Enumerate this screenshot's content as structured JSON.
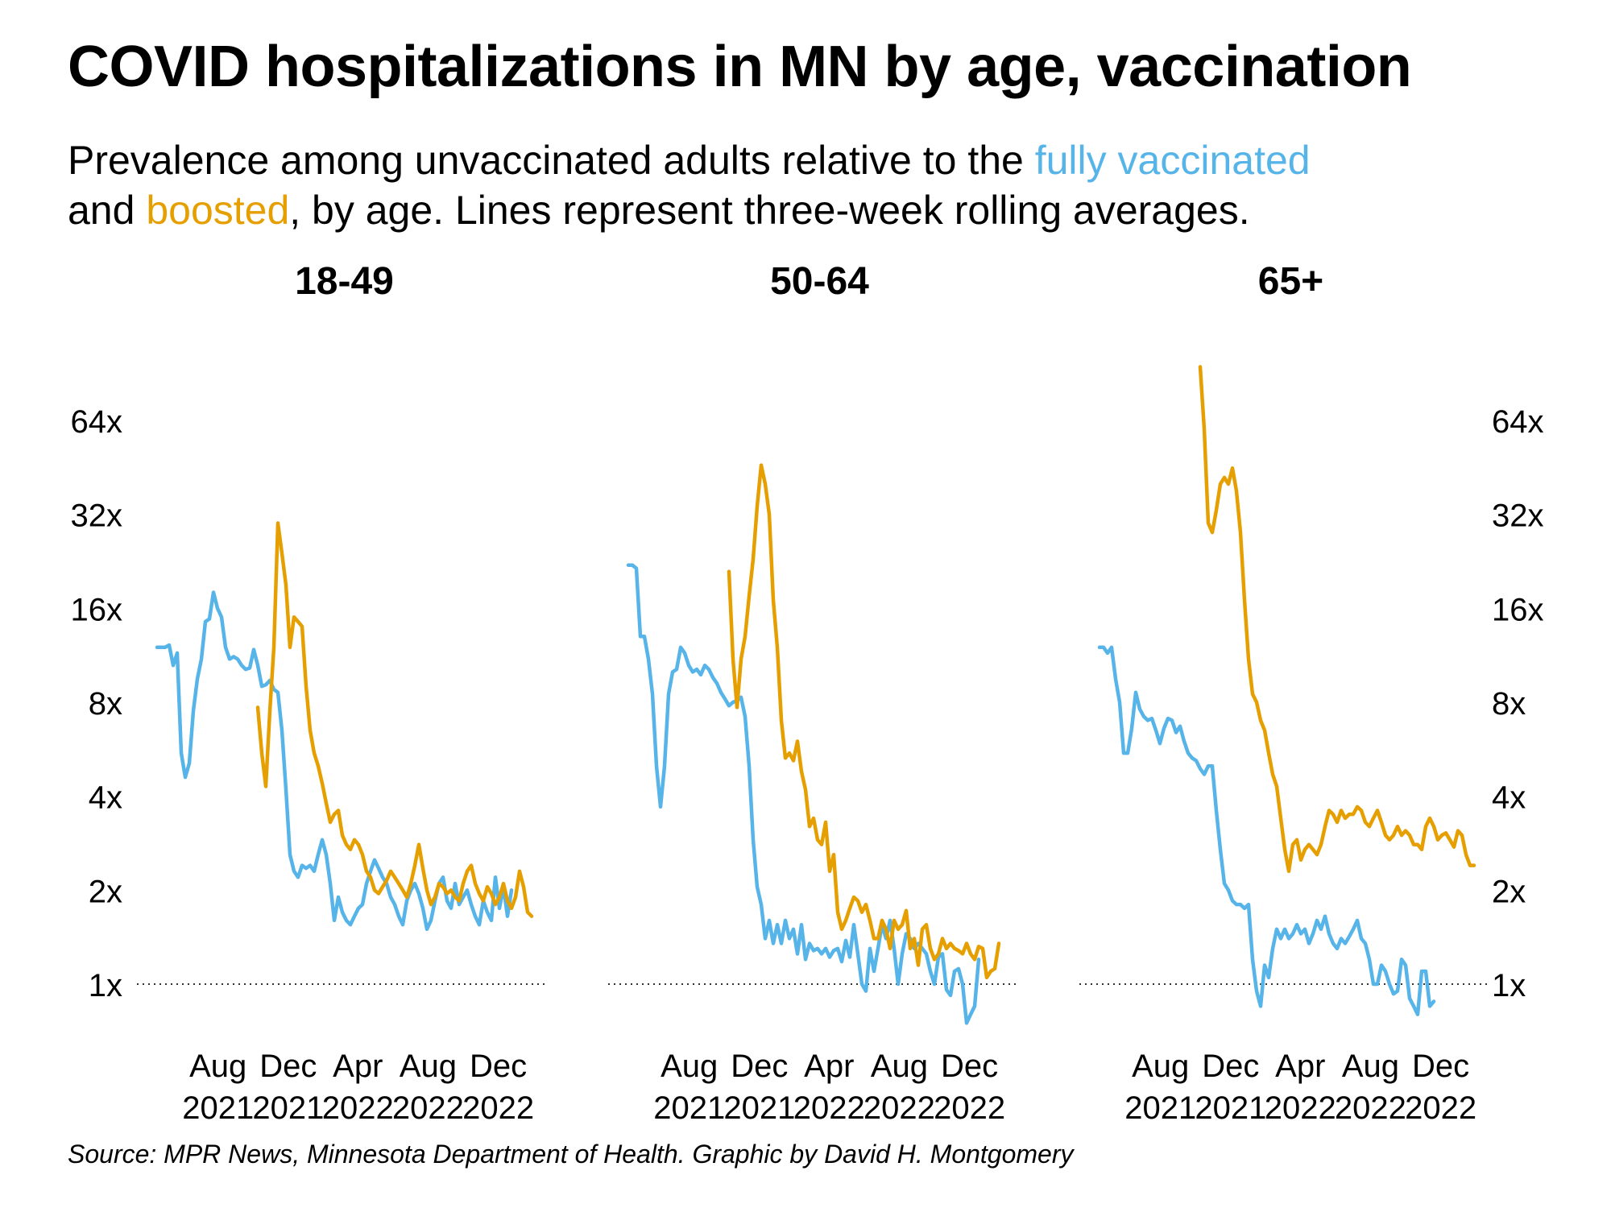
{
  "header": {
    "title": "COVID hospitalizations in MN by age, vaccination",
    "subtitle_part1": "Prevalence among unvaccinated adults relative to the ",
    "subtitle_blue": "fully vaccinated",
    "subtitle_part2": "and ",
    "subtitle_orange": "boosted",
    "subtitle_part3": ", by age. Lines represent three-week rolling averages."
  },
  "source": "Source: MPR News, Minnesota Department of Health. Graphic by David H. Montgomery",
  "colors": {
    "fully_vaccinated": "#56b4e9",
    "boosted": "#e69f00",
    "reference_line": "#333333"
  },
  "chart_data": [
    {
      "type": "line",
      "title": "18-49",
      "scale": "log2",
      "ylim": [
        0.7,
        110
      ],
      "y_ticks": [
        1,
        2,
        4,
        8,
        16,
        32,
        64
      ],
      "y_tick_labels": [
        "1x",
        "2x",
        "4x",
        "8x",
        "16x",
        "32x",
        "64x"
      ],
      "y_axis_side": "left",
      "x_range": [
        "2021-04-10",
        "2023-02-18"
      ],
      "x_ticks": [
        "2021-08-01",
        "2021-12-01",
        "2022-04-01",
        "2022-08-01",
        "2022-12-01"
      ],
      "x_tick_labels": [
        [
          "Aug",
          "2021"
        ],
        [
          "Dec",
          "2021"
        ],
        [
          "Apr",
          "2022"
        ],
        [
          "Aug",
          "2022"
        ],
        [
          "Dec",
          "2022"
        ]
      ],
      "reference_line": 1,
      "series": [
        {
          "name": "fully vaccinated",
          "color": "#56b4e9",
          "x_start": "2021-04-17",
          "step_days": 7,
          "values": [
            12,
            12,
            12,
            12.2,
            10.5,
            11.5,
            5.5,
            4.6,
            5.1,
            7.5,
            9.5,
            11,
            14.5,
            14.8,
            18,
            16,
            15,
            12,
            11,
            11.2,
            11,
            10.5,
            10.2,
            10.3,
            11.8,
            10.5,
            9,
            9.1,
            9.4,
            8.8,
            8.6,
            6.5,
            4.2,
            2.6,
            2.3,
            2.2,
            2.4,
            2.35,
            2.4,
            2.3,
            2.6,
            2.9,
            2.6,
            2.1,
            1.6,
            1.9,
            1.7,
            1.6,
            1.55,
            1.65,
            1.75,
            1.8,
            2.1,
            2.3,
            2.5,
            2.35,
            2.2,
            2.1,
            1.9,
            1.8,
            1.65,
            1.55,
            1.85,
            2.0,
            2.1,
            1.95,
            1.75,
            1.5,
            1.6,
            1.85,
            2.1,
            2.2,
            1.85,
            1.75,
            2.1,
            1.8,
            1.9,
            2.0,
            1.8,
            1.65,
            1.55,
            1.85,
            1.7,
            1.6,
            2.2,
            1.75,
            2.05,
            1.65,
            2.0
          ]
        },
        {
          "name": "boosted",
          "color": "#e69f00",
          "x_start": "2021-10-09",
          "step_days": 7,
          "values": [
            7.7,
            5.5,
            4.3,
            7.5,
            12,
            30,
            24,
            19,
            12,
            15,
            14.5,
            14,
            9,
            6.5,
            5.5,
            5,
            4.4,
            3.8,
            3.3,
            3.5,
            3.6,
            3.0,
            2.8,
            2.7,
            2.9,
            2.8,
            2.6,
            2.3,
            2.2,
            2.0,
            1.95,
            2.05,
            2.15,
            2.3,
            2.2,
            2.1,
            2.0,
            1.9,
            2.1,
            2.4,
            2.8,
            2.35,
            2.0,
            1.8,
            1.9,
            2.1,
            2.05,
            1.95,
            2.0,
            1.9,
            1.85,
            2.1,
            2.3,
            2.4,
            2.1,
            1.95,
            1.85,
            2.05,
            1.95,
            1.8,
            1.9,
            2.1,
            1.85,
            1.75,
            1.9,
            2.3,
            2.05,
            1.7,
            1.65
          ]
        }
      ]
    },
    {
      "type": "line",
      "title": "50-64",
      "scale": "log2",
      "ylim": [
        0.7,
        110
      ],
      "y_ticks": [
        1,
        2,
        4,
        8,
        16,
        32,
        64
      ],
      "x_range": [
        "2021-04-10",
        "2023-02-18"
      ],
      "x_ticks": [
        "2021-08-01",
        "2021-12-01",
        "2022-04-01",
        "2022-08-01",
        "2022-12-01"
      ],
      "x_tick_labels": [
        [
          "Aug",
          "2021"
        ],
        [
          "Dec",
          "2021"
        ],
        [
          "Apr",
          "2022"
        ],
        [
          "Aug",
          "2022"
        ],
        [
          "Dec",
          "2022"
        ]
      ],
      "reference_line": 1,
      "series": [
        {
          "name": "fully vaccinated",
          "color": "#56b4e9",
          "x_start": "2021-04-17",
          "step_days": 7,
          "values": [
            22,
            22,
            21.5,
            13,
            13,
            11,
            8.5,
            5,
            3.7,
            5,
            8.5,
            10,
            10.2,
            12,
            11.5,
            10.5,
            10,
            10.2,
            9.8,
            10.5,
            10.2,
            9.6,
            9.2,
            8.6,
            8.2,
            7.8,
            8,
            8.1,
            8.3,
            7.2,
            5,
            2.9,
            2.05,
            1.8,
            1.4,
            1.6,
            1.35,
            1.55,
            1.35,
            1.6,
            1.4,
            1.5,
            1.25,
            1.55,
            1.2,
            1.35,
            1.28,
            1.3,
            1.25,
            1.3,
            1.22,
            1.28,
            1.3,
            1.18,
            1.38,
            1.22,
            1.55,
            1.25,
            1.0,
            0.95,
            1.3,
            1.1,
            1.3,
            1.55,
            1.4,
            1.6,
            1.3,
            1.0,
            1.25,
            1.45,
            1.4,
            1.3,
            1.35,
            1.3,
            1.25,
            1.1,
            1.0,
            1.22,
            1.25,
            0.96,
            0.92,
            1.1,
            1.12,
            1.0,
            0.75,
            0.8,
            0.85,
            1.2
          ]
        },
        {
          "name": "boosted",
          "color": "#e69f00",
          "x_start": "2021-10-09",
          "step_days": 7,
          "values": [
            21,
            11,
            7.7,
            11,
            13,
            17.5,
            23,
            34,
            46,
            40,
            32,
            17,
            12,
            7,
            5.3,
            5.5,
            5.2,
            6,
            4.8,
            4.2,
            3.2,
            3.4,
            2.9,
            2.8,
            3.3,
            2.3,
            2.6,
            1.7,
            1.5,
            1.6,
            1.75,
            1.9,
            1.85,
            1.7,
            1.8,
            1.6,
            1.4,
            1.4,
            1.6,
            1.5,
            1.3,
            1.6,
            1.5,
            1.55,
            1.72,
            1.3,
            1.4,
            1.15,
            1.5,
            1.55,
            1.3,
            1.2,
            1.25,
            1.4,
            1.3,
            1.35,
            1.3,
            1.28,
            1.25,
            1.35,
            1.25,
            1.2,
            1.32,
            1.3,
            1.05,
            1.1,
            1.12,
            1.35
          ]
        }
      ]
    },
    {
      "type": "line",
      "title": "65+",
      "scale": "log2",
      "ylim": [
        0.7,
        110
      ],
      "y_ticks": [
        1,
        2,
        4,
        8,
        16,
        32,
        64
      ],
      "y_tick_labels": [
        "1x",
        "2x",
        "4x",
        "8x",
        "16x",
        "32x",
        "64x"
      ],
      "y_axis_side": "right",
      "x_range": [
        "2021-04-10",
        "2023-02-18"
      ],
      "x_ticks": [
        "2021-08-01",
        "2021-12-01",
        "2022-04-01",
        "2022-08-01",
        "2022-12-01"
      ],
      "x_tick_labels": [
        [
          "Aug",
          "2021"
        ],
        [
          "Dec",
          "2021"
        ],
        [
          "Apr",
          "2022"
        ],
        [
          "Aug",
          "2022"
        ],
        [
          "Dec",
          "2022"
        ]
      ],
      "reference_line": 1,
      "series": [
        {
          "name": "fully vaccinated",
          "color": "#56b4e9",
          "x_start": "2021-04-17",
          "step_days": 7,
          "values": [
            12,
            12,
            11.5,
            12,
            9.5,
            8,
            5.5,
            5.5,
            6.6,
            8.6,
            7.6,
            7.2,
            7,
            7.1,
            6.5,
            5.9,
            6.6,
            7.1,
            7.0,
            6.4,
            6.7,
            6.0,
            5.5,
            5.3,
            5.2,
            4.9,
            4.7,
            5.0,
            5.0,
            3.6,
            2.7,
            2.1,
            2.0,
            1.85,
            1.8,
            1.8,
            1.75,
            1.8,
            1.2,
            0.95,
            0.85,
            1.15,
            1.05,
            1.3,
            1.5,
            1.4,
            1.5,
            1.4,
            1.45,
            1.55,
            1.45,
            1.5,
            1.35,
            1.45,
            1.6,
            1.5,
            1.65,
            1.45,
            1.35,
            1.3,
            1.4,
            1.35,
            1.42,
            1.5,
            1.6,
            1.4,
            1.35,
            1.2,
            1.0,
            1.0,
            1.15,
            1.1,
            1.0,
            0.93,
            0.95,
            1.2,
            1.15,
            0.9,
            0.85,
            0.8,
            1.1,
            1.1,
            0.85,
            0.88
          ]
        },
        {
          "name": "boosted",
          "color": "#e69f00",
          "x_start": "2021-10-09",
          "step_days": 7,
          "values": [
            95,
            60,
            30,
            28,
            33,
            40,
            42,
            40,
            45,
            38,
            28,
            17,
            11,
            8.5,
            8,
            7.0,
            6.5,
            5.5,
            4.7,
            4.3,
            3.4,
            2.7,
            2.3,
            2.8,
            2.9,
            2.5,
            2.7,
            2.8,
            2.7,
            2.6,
            2.8,
            3.2,
            3.6,
            3.5,
            3.3,
            3.6,
            3.4,
            3.5,
            3.5,
            3.7,
            3.6,
            3.3,
            3.2,
            3.4,
            3.6,
            3.3,
            3.0,
            2.9,
            3.0,
            3.2,
            3.0,
            3.1,
            3.0,
            2.8,
            2.8,
            2.7,
            3.2,
            3.4,
            3.2,
            2.9,
            3.0,
            3.05,
            2.9,
            2.75,
            3.1,
            3.0,
            2.6,
            2.4,
            2.4
          ]
        }
      ]
    }
  ]
}
